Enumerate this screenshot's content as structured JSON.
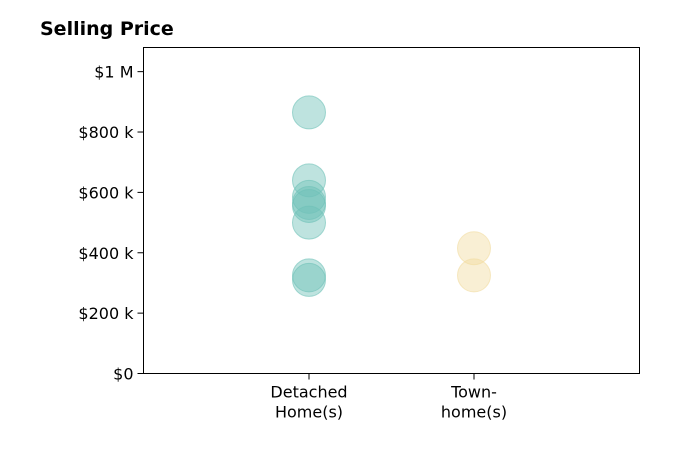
{
  "chart_data": {
    "type": "scatter",
    "title": "Selling Price",
    "xlabel": "",
    "ylabel": "",
    "categories": [
      [
        "Detached",
        "Home(s)"
      ],
      [
        "Town-",
        "home(s)"
      ]
    ],
    "ylim": [
      0,
      1080000
    ],
    "yticks": [
      {
        "value": 0,
        "label": "$0"
      },
      {
        "value": 200000,
        "label": "$200 k"
      },
      {
        "value": 400000,
        "label": "$400 k"
      },
      {
        "value": 600000,
        "label": "$600 k"
      },
      {
        "value": 800000,
        "label": "$800 k"
      },
      {
        "value": 1000000,
        "label": "$1 M"
      }
    ],
    "grid": false,
    "legend": "none",
    "series": [
      {
        "category_index": 0,
        "color": "#6ec2b8",
        "values": [
          865000,
          640000,
          585000,
          565000,
          555000,
          500000,
          325000,
          310000
        ]
      },
      {
        "category_index": 1,
        "color": "#f2dca0",
        "values": [
          415000,
          325000
        ]
      }
    ]
  }
}
